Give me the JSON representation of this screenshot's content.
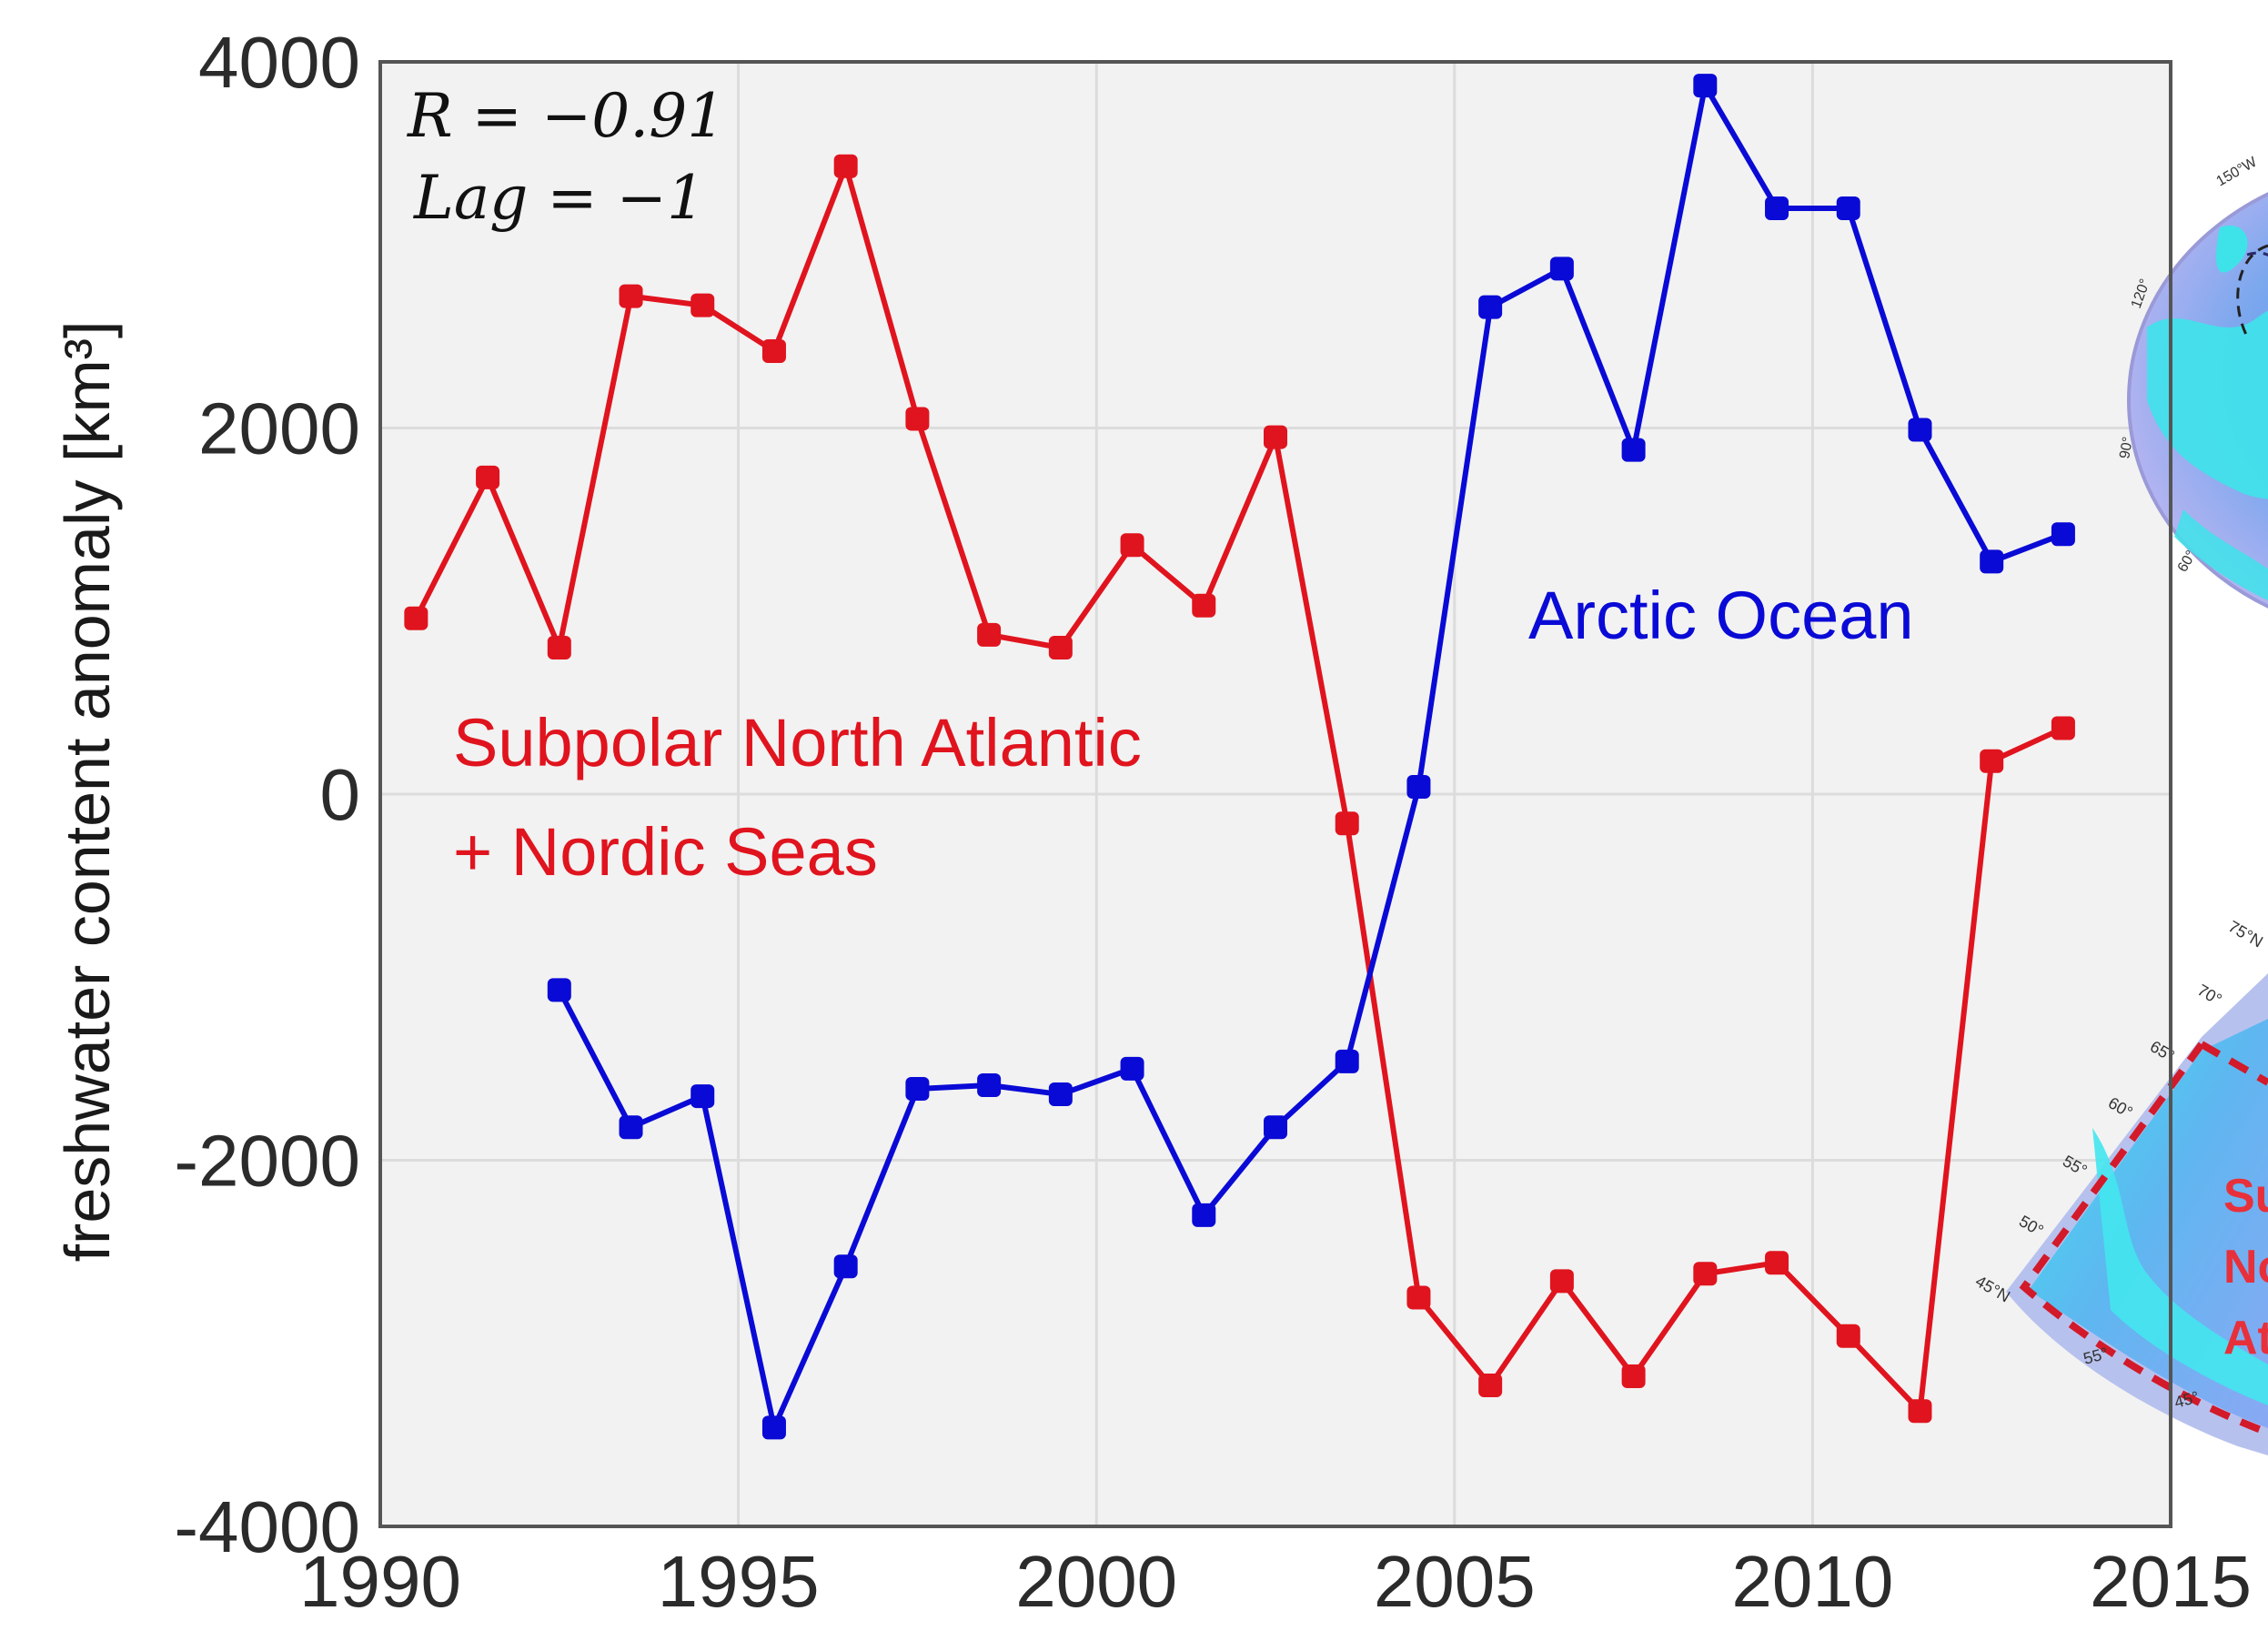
{
  "chart_data": {
    "type": "line",
    "xlabel": "",
    "ylabel": "freshwater content anomaly [km³]",
    "xlim": [
      1990,
      2015
    ],
    "ylim": [
      -4000,
      4000
    ],
    "xticks": [
      "1990",
      "1995",
      "2000",
      "2005",
      "2010",
      "2015"
    ],
    "yticks": [
      "4000",
      "2000",
      "0",
      "-2000",
      "-4000"
    ],
    "grid": true,
    "stats": {
      "r": "R = −0.91",
      "lag": "Lag = −1"
    },
    "series": [
      {
        "name": "Subpolar North Atlantic + Nordic Seas",
        "label_line1": "Subpolar North Atlantic",
        "label_line2": "+ Nordic Seas",
        "color": "#e0141e",
        "x": [
          1990.5,
          1991.5,
          1992.5,
          1993.5,
          1994.5,
          1995.5,
          1996.5,
          1997.5,
          1998.5,
          1999.5,
          2000.5,
          2001.5,
          2002.5,
          2003.5,
          2004.5,
          2005.5,
          2006.5,
          2007.5,
          2008.5,
          2009.5,
          2010.5,
          2011.5,
          2012.5,
          2013.5
        ],
        "y": [
          960,
          1730,
          800,
          2720,
          2670,
          2420,
          3430,
          2050,
          870,
          800,
          1360,
          1030,
          1950,
          -160,
          -2750,
          -3230,
          -2660,
          -3180,
          -2620,
          -2560,
          -2960,
          -3370,
          180,
          360
        ]
      },
      {
        "name": "Arctic Ocean",
        "label_line1": "Arctic Ocean",
        "color": "#0a0ad6",
        "x": [
          1992.5,
          1993.5,
          1994.5,
          1995.5,
          1996.5,
          1997.5,
          1998.5,
          1999.5,
          2000.5,
          2001.5,
          2002.5,
          2003.5,
          2004.5,
          2005.5,
          2006.5,
          2007.5,
          2008.5,
          2009.5,
          2010.5,
          2011.5,
          2012.5,
          2013.5
        ],
        "y": [
          -1070,
          -1820,
          -1650,
          -3460,
          -2580,
          -1610,
          -1590,
          -1640,
          -1500,
          -2300,
          -1820,
          -1460,
          40,
          2660,
          2870,
          1880,
          3870,
          3200,
          3200,
          1990,
          1270,
          1420
        ]
      }
    ]
  },
  "inset_maps": {
    "top_map_icon": "arctic-ocean-map",
    "bottom_map_icon": "subpolar-north-atlantic-map",
    "bottom_map_text": [
      "Su",
      "No",
      "At"
    ]
  }
}
